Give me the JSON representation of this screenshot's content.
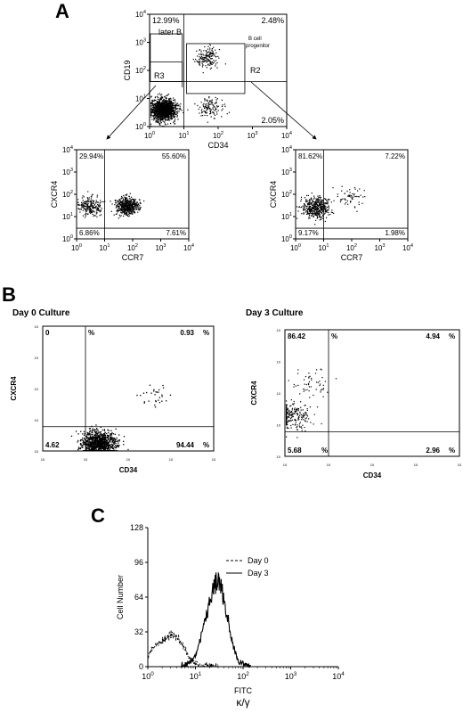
{
  "panel_labels": {
    "a": "A",
    "b": "B",
    "c": "C"
  },
  "panel_b_titles": {
    "left": "Day 0 Culture",
    "right": "Day 3 Culture"
  },
  "chart_data": [
    {
      "type": "scatter",
      "name": "A-top",
      "xlabel": "CD34",
      "ylabel": "CD19",
      "x_scale": "log",
      "xlim": [
        1,
        10000
      ],
      "ylim": [
        1,
        10000
      ],
      "xtick_exponents": [
        0,
        1,
        2,
        3,
        4
      ],
      "ytick_exponents": [
        0,
        1,
        2,
        3,
        4
      ],
      "quadrant_values": {
        "upper_left": "12.99%",
        "upper_right": "2.48%",
        "lower_right": "2.05%"
      },
      "gate_labels": {
        "later_b": "later B",
        "progenitor_line1": "B cell",
        "progenitor_line2": "progenitor",
        "r2": "R2",
        "r3": "R3"
      },
      "clusters": [
        {
          "cx": 2.5,
          "cy": 3.5,
          "n": 520
        },
        {
          "cx": 2.5,
          "cy": 4.5,
          "n": 900
        },
        {
          "cx": 50,
          "cy": 300,
          "n": 160
        },
        {
          "cx": 60,
          "cy": 5,
          "n": 120
        }
      ]
    },
    {
      "type": "scatter",
      "name": "A-left",
      "xlabel": "CCR7",
      "ylabel": "CXCR4",
      "x_scale": "log",
      "xlim": [
        1,
        10000
      ],
      "ylim": [
        1,
        10000
      ],
      "xtick_exponents": [
        0,
        1,
        2,
        3,
        4
      ],
      "ytick_exponents": [
        0,
        1,
        2,
        3,
        4
      ],
      "quadrant_values": {
        "upper_left": "29.94%",
        "upper_right": "55.60%",
        "lower_left": "6.86%",
        "lower_right": "7.61%"
      },
      "clusters": [
        {
          "cx": 3,
          "cy": 30,
          "n": 220
        },
        {
          "cx": 60,
          "cy": 30,
          "n": 520
        }
      ]
    },
    {
      "type": "scatter",
      "name": "A-right",
      "xlabel": "CCR7",
      "ylabel": "CXCR4",
      "x_scale": "log",
      "xlim": [
        1,
        10000
      ],
      "ylim": [
        1,
        10000
      ],
      "xtick_exponents": [
        0,
        1,
        2,
        3,
        4
      ],
      "ytick_exponents": [
        0,
        1,
        2,
        3,
        4
      ],
      "quadrant_values": {
        "upper_left": "81.62%",
        "upper_right": "7.22%",
        "lower_left": "9.17%",
        "lower_right": "1.98%"
      },
      "clusters": [
        {
          "cx": 5,
          "cy": 25,
          "n": 420
        },
        {
          "cx": 80,
          "cy": 80,
          "n": 60
        }
      ]
    },
    {
      "type": "scatter",
      "name": "B-left",
      "xlabel": "CD34",
      "ylabel": "CXCR4",
      "x_scale": "log",
      "xlim": [
        1,
        10000
      ],
      "ylim": [
        1,
        10000
      ],
      "quadrant_values": {
        "upper_left": "0",
        "upper_right": "0.93",
        "lower_left": "4.62",
        "lower_right": "94.44"
      },
      "percent_sign": "%",
      "clusters": [
        {
          "cx": 20,
          "cy": 1.8,
          "n": 950
        },
        {
          "cx": 400,
          "cy": 60,
          "n": 30
        }
      ]
    },
    {
      "type": "scatter",
      "name": "B-right",
      "xlabel": "CD34",
      "ylabel": "CXCR4",
      "x_scale": "log",
      "xlim": [
        1,
        10000
      ],
      "ylim": [
        1,
        10000
      ],
      "quadrant_values": {
        "upper_left": "86.42",
        "upper_right": "4.94",
        "lower_left": "5.68",
        "lower_right": "2.96"
      },
      "percent_sign": "%",
      "clusters": [
        {
          "cx": 1.4,
          "cy": 20,
          "n": 220
        },
        {
          "cx": 4,
          "cy": 200,
          "n": 50
        }
      ]
    },
    {
      "type": "line",
      "name": "C-histogram",
      "xlabel": "FITC",
      "xlabel2": "κ/γ",
      "ylabel": "Cell Number",
      "x_scale": "log",
      "xlim": [
        1,
        10000
      ],
      "ylim": [
        0,
        128
      ],
      "yticks": [
        0,
        32,
        64,
        96,
        128
      ],
      "xtick_exponents": [
        0,
        1,
        2,
        3,
        4
      ],
      "series": [
        {
          "name": "Day 0",
          "style": "dashed",
          "x": [
            1,
            1.2,
            1.5,
            2,
            2.5,
            3,
            3.5,
            4,
            5,
            6,
            7,
            8,
            10,
            12,
            15,
            20,
            30,
            50
          ],
          "y": [
            8,
            16,
            20,
            24,
            28,
            30,
            30,
            28,
            22,
            16,
            10,
            6,
            3,
            2,
            1,
            1,
            0,
            0
          ]
        },
        {
          "name": "Day 3",
          "style": "solid",
          "x": [
            1,
            5,
            8,
            10,
            12,
            15,
            18,
            20,
            24,
            28,
            30,
            35,
            40,
            45,
            50,
            60,
            70,
            80,
            100,
            150
          ],
          "y": [
            0,
            0,
            4,
            10,
            22,
            38,
            52,
            60,
            70,
            82,
            80,
            72,
            60,
            48,
            38,
            22,
            12,
            5,
            2,
            0
          ]
        }
      ]
    }
  ]
}
